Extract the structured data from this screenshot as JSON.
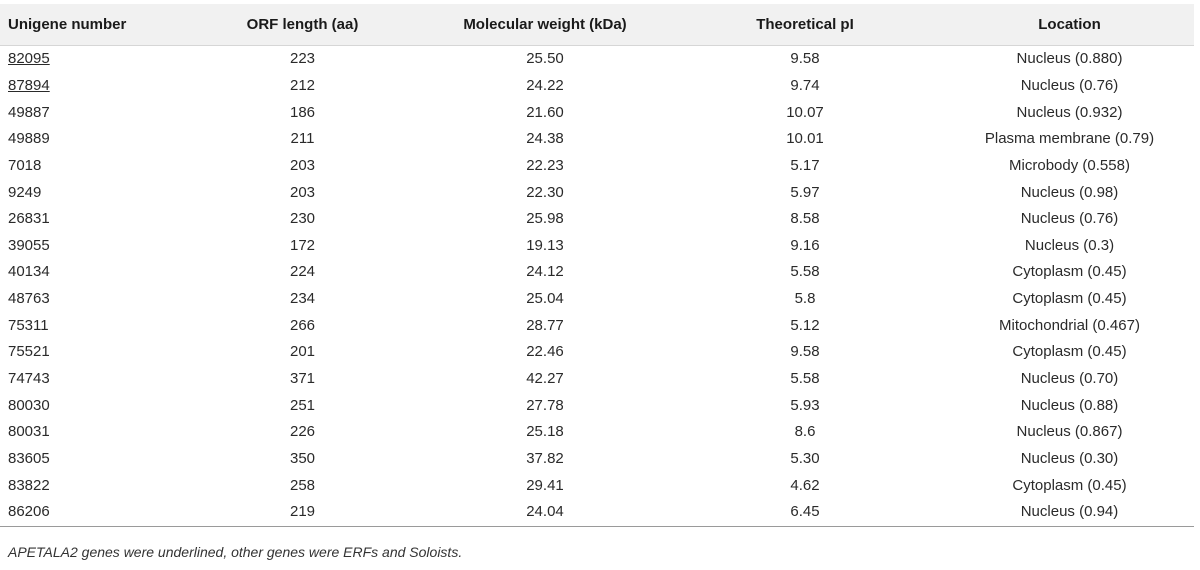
{
  "table": {
    "headers": {
      "unigene": "Unigene number",
      "orf": "ORF length (aa)",
      "mw": "Molecular weight (kDa)",
      "pi": "Theoretical pI",
      "location": "Location"
    },
    "rows": [
      {
        "unigene": "82095",
        "orf": "223",
        "mw": "25.50",
        "pi": "9.58",
        "location": "Nucleus (0.880)",
        "underlined": true
      },
      {
        "unigene": "87894",
        "orf": "212",
        "mw": "24.22",
        "pi": "9.74",
        "location": "Nucleus (0.76)",
        "underlined": true
      },
      {
        "unigene": "49887",
        "orf": "186",
        "mw": "21.60",
        "pi": "10.07",
        "location": "Nucleus (0.932)",
        "underlined": false
      },
      {
        "unigene": "49889",
        "orf": "211",
        "mw": "24.38",
        "pi": "10.01",
        "location": "Plasma membrane (0.79)",
        "underlined": false
      },
      {
        "unigene": "7018",
        "orf": "203",
        "mw": "22.23",
        "pi": "5.17",
        "location": "Microbody (0.558)",
        "underlined": false
      },
      {
        "unigene": "9249",
        "orf": "203",
        "mw": "22.30",
        "pi": "5.97",
        "location": "Nucleus (0.98)",
        "underlined": false
      },
      {
        "unigene": "26831",
        "orf": "230",
        "mw": "25.98",
        "pi": "8.58",
        "location": "Nucleus (0.76)",
        "underlined": false
      },
      {
        "unigene": "39055",
        "orf": "172",
        "mw": "19.13",
        "pi": "9.16",
        "location": "Nucleus (0.3)",
        "underlined": false
      },
      {
        "unigene": "40134",
        "orf": "224",
        "mw": "24.12",
        "pi": "5.58",
        "location": "Cytoplasm (0.45)",
        "underlined": false
      },
      {
        "unigene": "48763",
        "orf": "234",
        "mw": "25.04",
        "pi": "5.8",
        "location": "Cytoplasm (0.45)",
        "underlined": false
      },
      {
        "unigene": "75311",
        "orf": "266",
        "mw": "28.77",
        "pi": "5.12",
        "location": "Mitochondrial (0.467)",
        "underlined": false
      },
      {
        "unigene": "75521",
        "orf": "201",
        "mw": "22.46",
        "pi": "9.58",
        "location": "Cytoplasm (0.45)",
        "underlined": false
      },
      {
        "unigene": "74743",
        "orf": "371",
        "mw": "42.27",
        "pi": "5.58",
        "location": "Nucleus (0.70)",
        "underlined": false
      },
      {
        "unigene": "80030",
        "orf": "251",
        "mw": "27.78",
        "pi": "5.93",
        "location": "Nucleus (0.88)",
        "underlined": false
      },
      {
        "unigene": "80031",
        "orf": "226",
        "mw": "25.18",
        "pi": "8.6",
        "location": "Nucleus (0.867)",
        "underlined": false
      },
      {
        "unigene": "83605",
        "orf": "350",
        "mw": "37.82",
        "pi": "5.30",
        "location": "Nucleus (0.30)",
        "underlined": false
      },
      {
        "unigene": "83822",
        "orf": "258",
        "mw": "29.41",
        "pi": "4.62",
        "location": "Cytoplasm (0.45)",
        "underlined": false
      },
      {
        "unigene": "86206",
        "orf": "219",
        "mw": "24.04",
        "pi": "6.45",
        "location": "Nucleus (0.94)",
        "underlined": false
      }
    ]
  },
  "footnote": "APETALA2 genes were underlined, other genes were ERFs and Soloists.",
  "colors": {
    "header_bg": "#f1f1f1",
    "text": "#222222"
  }
}
